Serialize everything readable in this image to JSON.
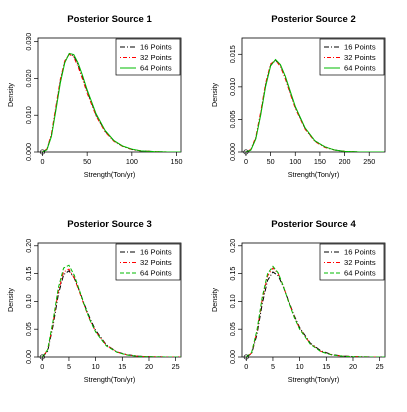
{
  "chart_data": [
    {
      "type": "line",
      "title": "Posterior Source 1",
      "xlabel": "Strength(Ton/yr)",
      "ylabel": "Density",
      "xlim": [
        -5,
        155
      ],
      "ylim": [
        0,
        0.031
      ],
      "xticks": [
        0,
        50,
        100,
        150
      ],
      "xtick_labels": [
        "0",
        "50",
        "100",
        "150"
      ],
      "yticks": [
        0,
        0.01,
        0.02,
        0.03
      ],
      "ytick_labels": [
        "0.000",
        "0.010",
        "0.020",
        "0.030"
      ],
      "marker_point": [
        0,
        0
      ],
      "legend_position": "top-right",
      "series": [
        {
          "name": "16 Points",
          "color": "#000000",
          "dash": "dashdot",
          "x": [
            0,
            5,
            10,
            15,
            20,
            25,
            30,
            35,
            40,
            45,
            50,
            60,
            70,
            80,
            90,
            100,
            110,
            125,
            140,
            155
          ],
          "y": [
            0.0,
            0.0007,
            0.0045,
            0.0118,
            0.0192,
            0.0245,
            0.0267,
            0.0262,
            0.0236,
            0.0202,
            0.0165,
            0.0101,
            0.0057,
            0.003,
            0.0015,
            0.0007,
            0.0003,
            0.0001,
            0.0,
            0.0
          ]
        },
        {
          "name": "32 Points",
          "color": "#ff0000",
          "dash": "dotdash",
          "x": [
            0,
            5,
            10,
            15,
            20,
            25,
            30,
            35,
            40,
            45,
            50,
            60,
            70,
            80,
            90,
            100,
            110,
            125,
            140,
            155
          ],
          "y": [
            0.0,
            0.0008,
            0.0049,
            0.0124,
            0.0198,
            0.0248,
            0.0266,
            0.0258,
            0.0231,
            0.0197,
            0.016,
            0.0098,
            0.0055,
            0.0029,
            0.0015,
            0.0007,
            0.0003,
            0.0001,
            0.0,
            0.0
          ]
        },
        {
          "name": "64 Points",
          "color": "#00bb00",
          "dash": "solid",
          "x": [
            0,
            5,
            10,
            15,
            20,
            25,
            30,
            35,
            40,
            45,
            50,
            60,
            70,
            80,
            90,
            100,
            110,
            125,
            140,
            155
          ],
          "y": [
            0.0,
            0.0006,
            0.0042,
            0.0113,
            0.0188,
            0.0243,
            0.0268,
            0.0265,
            0.0241,
            0.0207,
            0.0169,
            0.0104,
            0.0059,
            0.0031,
            0.0016,
            0.0008,
            0.0003,
            0.0001,
            0.0,
            0.0
          ]
        }
      ]
    },
    {
      "type": "line",
      "title": "Posterior Source 2",
      "xlabel": "Strength(Ton/yr)",
      "ylabel": "Density",
      "xlim": [
        -8,
        282
      ],
      "ylim": [
        0,
        0.0175
      ],
      "xticks": [
        0,
        50,
        100,
        150,
        200,
        250
      ],
      "xtick_labels": [
        "0",
        "50",
        "100",
        "150",
        "200",
        "250"
      ],
      "yticks": [
        0,
        0.005,
        0.01,
        0.015
      ],
      "ytick_labels": [
        "0.000",
        "0.005",
        "0.010",
        "0.015"
      ],
      "marker_point": [
        0,
        0
      ],
      "legend_position": "top-right",
      "series": [
        {
          "name": "16 Points",
          "color": "#000000",
          "dash": "dashdot",
          "x": [
            0,
            10,
            20,
            30,
            40,
            50,
            60,
            70,
            80,
            90,
            100,
            120,
            140,
            160,
            180,
            200,
            230,
            260,
            280
          ],
          "y": [
            0.0,
            0.0003,
            0.0021,
            0.0059,
            0.0103,
            0.0133,
            0.0141,
            0.0133,
            0.0114,
            0.0091,
            0.0069,
            0.0036,
            0.0017,
            0.0008,
            0.0003,
            0.0001,
            0.0,
            0.0,
            0.0
          ]
        },
        {
          "name": "32 Points",
          "color": "#ff0000",
          "dash": "dotdash",
          "x": [
            0,
            10,
            20,
            30,
            40,
            50,
            60,
            70,
            80,
            90,
            100,
            120,
            140,
            160,
            180,
            200,
            230,
            260,
            280
          ],
          "y": [
            0.0,
            0.0004,
            0.0023,
            0.0062,
            0.0106,
            0.0135,
            0.0141,
            0.0131,
            0.0112,
            0.0089,
            0.0067,
            0.0035,
            0.0016,
            0.0007,
            0.0003,
            0.0001,
            0.0,
            0.0,
            0.0
          ]
        },
        {
          "name": "64 Points",
          "color": "#00bb00",
          "dash": "solid",
          "x": [
            0,
            10,
            20,
            30,
            40,
            50,
            60,
            70,
            80,
            90,
            100,
            120,
            140,
            160,
            180,
            200,
            230,
            260,
            280
          ],
          "y": [
            0.0,
            0.0003,
            0.002,
            0.0057,
            0.0101,
            0.0132,
            0.0142,
            0.0134,
            0.0116,
            0.0093,
            0.007,
            0.0037,
            0.0017,
            0.0008,
            0.0003,
            0.0001,
            0.0,
            0.0,
            0.0
          ]
        }
      ]
    },
    {
      "type": "line",
      "title": "Posterior Source 3",
      "xlabel": "Strength(Ton/yr)",
      "ylabel": "Density",
      "xlim": [
        -0.8,
        26
      ],
      "ylim": [
        0,
        0.205
      ],
      "xticks": [
        0,
        5,
        10,
        15,
        20,
        25
      ],
      "xtick_labels": [
        "0",
        "5",
        "10",
        "15",
        "20",
        "25"
      ],
      "yticks": [
        0,
        0.05,
        0.1,
        0.15,
        0.2
      ],
      "ytick_labels": [
        "0.00",
        "0.05",
        "0.10",
        "0.15",
        "0.20"
      ],
      "marker_point": [
        0,
        0
      ],
      "legend_position": "top-right",
      "series": [
        {
          "name": "16 Points",
          "color": "#000000",
          "dash": "dashdot",
          "x": [
            0,
            1,
            2,
            3,
            4,
            5,
            6,
            7,
            8,
            9,
            10,
            12,
            14,
            16,
            18,
            20,
            23,
            26
          ],
          "y": [
            0.0,
            0.01,
            0.055,
            0.112,
            0.148,
            0.155,
            0.142,
            0.118,
            0.092,
            0.068,
            0.048,
            0.022,
            0.009,
            0.004,
            0.0015,
            0.0005,
            0.0001,
            0.0
          ]
        },
        {
          "name": "32 Points",
          "color": "#ff0000",
          "dash": "dotdash",
          "x": [
            0,
            1,
            2,
            3,
            4,
            5,
            6,
            7,
            8,
            9,
            10,
            12,
            14,
            16,
            18,
            20,
            23,
            26
          ],
          "y": [
            0.0,
            0.012,
            0.06,
            0.118,
            0.153,
            0.158,
            0.142,
            0.116,
            0.089,
            0.065,
            0.046,
            0.021,
            0.009,
            0.0035,
            0.0013,
            0.0004,
            0.0001,
            0.0
          ]
        },
        {
          "name": "64 Points",
          "color": "#00bb00",
          "dash": "dashed",
          "x": [
            0,
            1,
            2,
            3,
            4,
            5,
            6,
            7,
            8,
            9,
            10,
            12,
            14,
            16,
            18,
            20,
            23,
            26
          ],
          "y": [
            0.0,
            0.013,
            0.064,
            0.124,
            0.16,
            0.165,
            0.147,
            0.119,
            0.09,
            0.065,
            0.045,
            0.02,
            0.0085,
            0.0033,
            0.0012,
            0.0004,
            0.0001,
            0.0
          ]
        }
      ]
    },
    {
      "type": "line",
      "title": "Posterior Source 4",
      "xlabel": "Strength(Ton/yr)",
      "ylabel": "Density",
      "xlim": [
        -0.8,
        26
      ],
      "ylim": [
        0,
        0.205
      ],
      "xticks": [
        0,
        5,
        10,
        15,
        20,
        25
      ],
      "xtick_labels": [
        "0",
        "5",
        "10",
        "15",
        "20",
        "25"
      ],
      "yticks": [
        0,
        0.05,
        0.1,
        0.15,
        0.2
      ],
      "ytick_labels": [
        "0.00",
        "0.05",
        "0.10",
        "0.15",
        "0.20"
      ],
      "marker_point": [
        0,
        0
      ],
      "legend_position": "top-right",
      "series": [
        {
          "name": "16 Points",
          "color": "#000000",
          "dash": "dashdot",
          "x": [
            0,
            1,
            2,
            3,
            4,
            5,
            6,
            7,
            8,
            9,
            10,
            12,
            14,
            16,
            18,
            20,
            23,
            26
          ],
          "y": [
            0.0,
            0.006,
            0.04,
            0.096,
            0.138,
            0.153,
            0.146,
            0.125,
            0.099,
            0.074,
            0.053,
            0.025,
            0.011,
            0.0045,
            0.0018,
            0.0007,
            0.0001,
            0.0
          ]
        },
        {
          "name": "32 Points",
          "color": "#ff0000",
          "dash": "dotdash",
          "x": [
            0,
            1,
            2,
            3,
            4,
            5,
            6,
            7,
            8,
            9,
            10,
            12,
            14,
            16,
            18,
            20,
            23,
            26
          ],
          "y": [
            0.0,
            0.007,
            0.045,
            0.104,
            0.146,
            0.16,
            0.15,
            0.126,
            0.098,
            0.072,
            0.051,
            0.024,
            0.01,
            0.004,
            0.0016,
            0.0006,
            0.0001,
            0.0
          ]
        },
        {
          "name": "64 Points",
          "color": "#00bb00",
          "dash": "dashed",
          "x": [
            0,
            1,
            2,
            3,
            4,
            5,
            6,
            7,
            8,
            9,
            10,
            12,
            14,
            16,
            18,
            20,
            23,
            26
          ],
          "y": [
            0.0,
            0.008,
            0.048,
            0.108,
            0.15,
            0.163,
            0.151,
            0.126,
            0.097,
            0.071,
            0.05,
            0.023,
            0.0095,
            0.0038,
            0.0015,
            0.0006,
            0.0001,
            0.0
          ]
        }
      ]
    }
  ]
}
